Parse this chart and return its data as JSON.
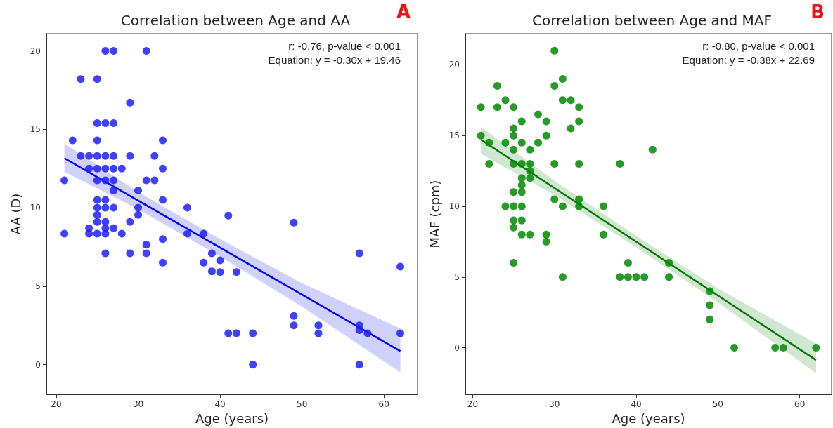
{
  "chart_data": [
    {
      "type": "scatter",
      "title": "Correlation between Age and AA",
      "xlabel": "Age (years)",
      "ylabel": "AA (D)",
      "annotations": [
        "r: -0.76, p-value < 0.001",
        "Equation: y = -0.30x + 19.46",
        "A"
      ],
      "xlim": [
        18.8,
        64.1
      ],
      "ylim": [
        -1.9,
        21.1
      ],
      "xticks": [
        20,
        30,
        40,
        50,
        60
      ],
      "yticks": [
        0,
        5,
        10,
        15,
        20
      ],
      "grid": false,
      "series": [
        {
          "marker": "circle",
          "color": "#1f1fff",
          "x": [
            26,
            27,
            31,
            23,
            25,
            29,
            25,
            26,
            27,
            22,
            25,
            33,
            23,
            24,
            25,
            26,
            27,
            29,
            32,
            24,
            25,
            26,
            27,
            28,
            33,
            21,
            25,
            26,
            27,
            31,
            32,
            27,
            30,
            25,
            26,
            33,
            25,
            26,
            27,
            30,
            36,
            25,
            30,
            41,
            25,
            26,
            29,
            24,
            26,
            27,
            21,
            24,
            25,
            26,
            28,
            36,
            38,
            33,
            31,
            26,
            29,
            31,
            33,
            38,
            39,
            40,
            39,
            40,
            42,
            49,
            57,
            62,
            49,
            49,
            52,
            52,
            41,
            42,
            44,
            44,
            57,
            57,
            58,
            62,
            57
          ],
          "values": [
            20,
            20,
            20,
            18.2,
            18.2,
            16.7,
            15.4,
            15.4,
            15.4,
            14.3,
            14.3,
            14.3,
            13.3,
            13.3,
            13.3,
            13.3,
            13.3,
            13.3,
            13.3,
            12.5,
            12.5,
            12.5,
            12.5,
            12.5,
            12.5,
            11.75,
            11.75,
            11.75,
            11.75,
            11.75,
            11.75,
            11.1,
            11.1,
            10.5,
            10.5,
            10.5,
            10,
            10,
            10,
            10,
            10,
            9.55,
            9.55,
            9.5,
            9.1,
            9.1,
            9.1,
            8.7,
            8.7,
            8.7,
            8.35,
            8.35,
            8.35,
            8.35,
            8.35,
            8.35,
            8.35,
            8,
            7.65,
            7.1,
            7.1,
            7.1,
            6.5,
            6.5,
            7.1,
            6.65,
            5.95,
            5.9,
            5.9,
            9.05,
            7.1,
            6.25,
            3.1,
            2.5,
            2.5,
            2,
            2,
            2,
            2,
            0,
            2.5,
            2.2,
            2,
            2,
            0
          ]
        },
        {
          "type": "line",
          "marker": "none",
          "color": "#0000ff",
          "x": [
            21,
            30,
            40,
            50,
            62
          ],
          "values": [
            13.16,
            10.46,
            7.46,
            4.46,
            0.86
          ],
          "lower": [
            12.3,
            9.9,
            6.9,
            3.7,
            -0.5
          ],
          "upper": [
            14.1,
            11.0,
            8.0,
            5.2,
            2.3
          ]
        }
      ]
    },
    {
      "type": "scatter",
      "title": "Correlation between Age and MAF",
      "xlabel": "Age (years)",
      "ylabel": "MAF (cpm)",
      "annotations": [
        "r: -0.80, p-value < 0.001",
        "Equation: y = -0.38x + 22.69",
        "B"
      ],
      "xlim": [
        19.1,
        63.9
      ],
      "ylim": [
        -3.3,
        22.2
      ],
      "xticks": [
        20,
        30,
        40,
        50,
        60
      ],
      "yticks": [
        0,
        5,
        10,
        15,
        20
      ],
      "grid": false,
      "series": [
        {
          "marker": "circle",
          "color": "#008a00",
          "x": [
            30,
            31,
            23,
            30,
            24,
            31,
            32,
            21,
            23,
            25,
            33,
            28,
            26,
            29,
            33,
            25,
            32,
            21,
            25,
            29,
            22,
            24,
            26,
            28,
            25,
            27,
            22,
            25,
            26,
            27,
            30,
            33,
            38,
            27,
            26,
            27,
            26,
            25,
            26,
            30,
            33,
            24,
            25,
            26,
            31,
            33,
            36,
            25,
            26,
            25,
            26,
            27,
            29,
            36,
            29,
            25,
            31,
            42,
            39,
            38,
            39,
            40,
            41,
            44,
            44,
            49,
            49,
            49,
            52,
            57,
            58,
            62
          ],
          "values": [
            21,
            19,
            18.5,
            18.5,
            17.5,
            17.5,
            17.5,
            17,
            17,
            17,
            17,
            16.5,
            16,
            16,
            16,
            15.5,
            15.5,
            15,
            15,
            15,
            14.5,
            14.5,
            14.5,
            14.5,
            14,
            14,
            13,
            13,
            13,
            13,
            13,
            13,
            13,
            12.5,
            12,
            12,
            11.5,
            11,
            11,
            10.5,
            10.5,
            10,
            10,
            10,
            10,
            10,
            10,
            9,
            9,
            8.5,
            8,
            8,
            8,
            8,
            7.5,
            6,
            5,
            14,
            6,
            5,
            5,
            5,
            5,
            6,
            5,
            4,
            3,
            2,
            0,
            0,
            0,
            0
          ]
        },
        {
          "type": "line",
          "marker": "none",
          "color": "#007a00",
          "x": [
            21,
            30,
            40,
            50,
            62
          ],
          "values": [
            14.71,
            11.29,
            7.49,
            3.69,
            -0.87
          ],
          "lower": [
            13.7,
            10.8,
            7.1,
            3.2,
            -1.8
          ],
          "upper": [
            15.6,
            11.8,
            7.9,
            4.2,
            0.3
          ]
        }
      ]
    }
  ]
}
